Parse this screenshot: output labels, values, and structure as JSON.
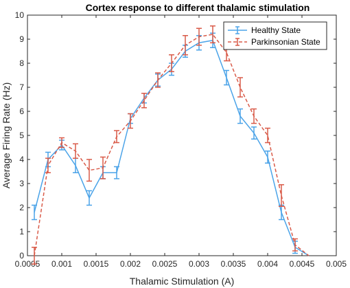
{
  "chart_data": {
    "type": "line",
    "title": "Cortex response to different thalamic stimulation",
    "xlabel": "Thalamic Stimulation (A)",
    "ylabel": "Average Firing Rate (Hz)",
    "xlim": [
      0.0005,
      0.005
    ],
    "ylim": [
      0,
      10
    ],
    "xticks": [
      0.0005,
      0.001,
      0.0015,
      0.002,
      0.0025,
      0.003,
      0.0035,
      0.004,
      0.0045,
      0.005
    ],
    "xtick_labels": [
      "0.0005",
      "0.001",
      "0.0015",
      "0.002",
      "0.0025",
      "0.003",
      "0.0035",
      "0.004",
      "0.0045",
      "0.005"
    ],
    "yticks": [
      0,
      1,
      2,
      3,
      4,
      5,
      6,
      7,
      8,
      9,
      10
    ],
    "ytick_labels": [
      "0",
      "1",
      "2",
      "3",
      "4",
      "5",
      "6",
      "7",
      "8",
      "9",
      "10"
    ],
    "grid": false,
    "legend_position": "top-right",
    "series": [
      {
        "name": "Healthy State",
        "color": "#4aa3e8",
        "style": "solid",
        "x": [
          0.0006,
          0.0008,
          0.001,
          0.0012,
          0.0014,
          0.0016,
          0.0018,
          0.002,
          0.0022,
          0.0024,
          0.0026,
          0.0028,
          0.003,
          0.0032,
          0.0034,
          0.0036,
          0.0038,
          0.004,
          0.0042,
          0.0044,
          0.0046
        ],
        "y": [
          1.8,
          4.0,
          4.6,
          3.75,
          2.4,
          3.45,
          3.45,
          5.7,
          6.55,
          7.3,
          7.75,
          8.5,
          8.85,
          8.95,
          7.4,
          5.8,
          5.1,
          4.1,
          1.8,
          0.35,
          0.0
        ],
        "err": [
          0.3,
          0.3,
          0.2,
          0.3,
          0.3,
          0.25,
          0.25,
          0.2,
          0.2,
          0.25,
          0.25,
          0.25,
          0.3,
          0.3,
          0.3,
          0.3,
          0.25,
          0.25,
          0.3,
          0.25,
          0.0
        ]
      },
      {
        "name": "Parkinsonian State",
        "color": "#d95a48",
        "style": "dashed",
        "x": [
          0.0006,
          0.0008,
          0.001,
          0.0012,
          0.0014,
          0.0016,
          0.0018,
          0.002,
          0.0022,
          0.0024,
          0.0026,
          0.0028,
          0.003,
          0.0032,
          0.0034,
          0.0036,
          0.0038,
          0.004,
          0.0042,
          0.0044,
          0.0046
        ],
        "y": [
          0.0,
          3.75,
          4.7,
          4.35,
          3.55,
          3.65,
          4.95,
          5.6,
          6.45,
          7.3,
          8.0,
          8.75,
          9.1,
          9.2,
          8.45,
          7.0,
          5.8,
          5.0,
          2.5,
          0.45,
          0.0
        ],
        "err": [
          0.35,
          0.3,
          0.2,
          0.3,
          0.45,
          0.45,
          0.25,
          0.3,
          0.3,
          0.3,
          0.35,
          0.4,
          0.35,
          0.35,
          0.35,
          0.4,
          0.3,
          0.3,
          0.45,
          0.25,
          0.0
        ]
      }
    ]
  }
}
